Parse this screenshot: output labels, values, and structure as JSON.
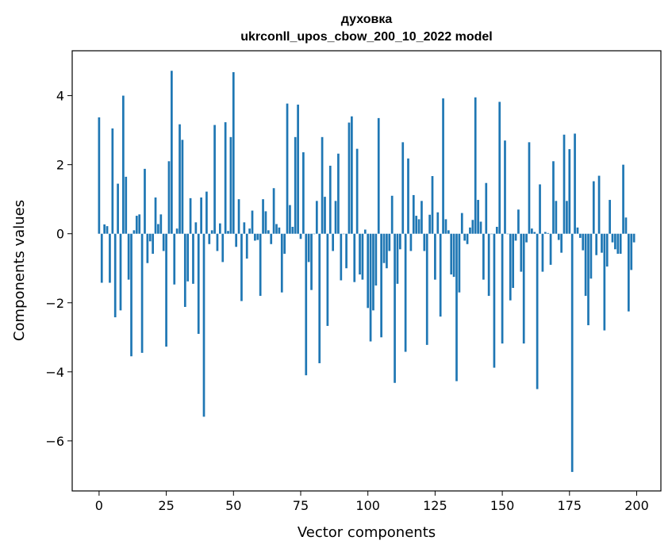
{
  "chart_data": {
    "type": "bar",
    "title": "духовка",
    "subtitle": "ukrconll_upos_cbow_200_10_2022 model",
    "xlabel": "Vector components",
    "ylabel": "Components values",
    "xlim": [
      -10,
      209
    ],
    "ylim": [
      -7.45,
      5.3
    ],
    "xticks": [
      0,
      25,
      50,
      75,
      100,
      125,
      150,
      175,
      200
    ],
    "yticks": [
      -6,
      -4,
      -2,
      0,
      2,
      4
    ],
    "x": [
      0,
      1,
      2,
      3,
      4,
      5,
      6,
      7,
      8,
      9,
      10,
      11,
      12,
      13,
      14,
      15,
      16,
      17,
      18,
      19,
      20,
      21,
      22,
      23,
      24,
      25,
      26,
      27,
      28,
      29,
      30,
      31,
      32,
      33,
      34,
      35,
      36,
      37,
      38,
      39,
      40,
      41,
      42,
      43,
      44,
      45,
      46,
      47,
      48,
      49,
      50,
      51,
      52,
      53,
      54,
      55,
      56,
      57,
      58,
      59,
      60,
      61,
      62,
      63,
      64,
      65,
      66,
      67,
      68,
      69,
      70,
      71,
      72,
      73,
      74,
      75,
      76,
      77,
      78,
      79,
      80,
      81,
      82,
      83,
      84,
      85,
      86,
      87,
      88,
      89,
      90,
      91,
      92,
      93,
      94,
      95,
      96,
      97,
      98,
      99,
      100,
      101,
      102,
      103,
      104,
      105,
      106,
      107,
      108,
      109,
      110,
      111,
      112,
      113,
      114,
      115,
      116,
      117,
      118,
      119,
      120,
      121,
      122,
      123,
      124,
      125,
      126,
      127,
      128,
      129,
      130,
      131,
      132,
      133,
      134,
      135,
      136,
      137,
      138,
      139,
      140,
      141,
      142,
      143,
      144,
      145,
      146,
      147,
      148,
      149,
      150,
      151,
      152,
      153,
      154,
      155,
      156,
      157,
      158,
      159,
      160,
      161,
      162,
      163,
      164,
      165,
      166,
      167,
      168,
      169,
      170,
      171,
      172,
      173,
      174,
      175,
      176,
      177,
      178,
      179,
      180,
      181,
      182,
      183,
      184,
      185,
      186,
      187,
      188,
      189,
      190,
      191,
      192,
      193,
      194,
      195,
      196,
      197,
      198,
      199
    ],
    "values": [
      3.37,
      -1.42,
      0.27,
      0.22,
      -1.42,
      3.05,
      -2.42,
      1.45,
      -2.22,
      4.0,
      1.65,
      -1.33,
      -3.55,
      0.1,
      0.52,
      0.56,
      -3.45,
      1.88,
      -0.85,
      -0.22,
      -0.58,
      1.05,
      0.28,
      0.56,
      -0.5,
      -3.27,
      2.1,
      4.72,
      -1.47,
      0.15,
      3.17,
      2.72,
      -2.12,
      -1.38,
      1.03,
      -1.45,
      0.33,
      -2.9,
      1.05,
      -5.3,
      1.22,
      -0.3,
      0.1,
      3.15,
      -0.5,
      0.3,
      -0.82,
      3.23,
      0.08,
      2.8,
      4.68,
      -0.38,
      1.0,
      -1.95,
      0.33,
      -0.72,
      0.15,
      0.67,
      -0.2,
      -0.18,
      -1.8,
      1.0,
      0.65,
      0.1,
      -0.3,
      1.32,
      0.28,
      0.18,
      -1.7,
      -0.58,
      3.77,
      0.83,
      0.2,
      2.8,
      3.74,
      -0.15,
      2.36,
      -4.1,
      -0.82,
      -1.63,
      0.0,
      0.95,
      -3.75,
      2.8,
      1.07,
      -2.67,
      1.97,
      -0.5,
      0.95,
      2.32,
      -1.35,
      0.0,
      -1.0,
      3.22,
      3.4,
      -1.4,
      2.46,
      -1.18,
      -1.33,
      0.12,
      -2.15,
      -3.12,
      -2.22,
      -1.5,
      3.35,
      -3.0,
      -0.85,
      -1.0,
      -0.5,
      1.1,
      -4.32,
      -1.45,
      -0.45,
      2.65,
      -3.42,
      2.18,
      -0.5,
      1.12,
      0.52,
      0.42,
      0.95,
      -0.5,
      -3.22,
      0.55,
      1.67,
      -1.33,
      0.62,
      -2.4,
      3.92,
      0.42,
      0.1,
      -1.18,
      -1.25,
      -4.27,
      -1.7,
      0.6,
      -0.2,
      -0.3,
      0.18,
      0.4,
      3.95,
      0.98,
      0.35,
      -1.33,
      1.47,
      -1.8,
      0.0,
      -3.88,
      0.2,
      3.82,
      -3.18,
      2.7,
      0.0,
      -1.93,
      -1.57,
      -0.2,
      0.7,
      -1.1,
      -3.18,
      -0.25,
      2.65,
      0.15,
      0.05,
      -4.5,
      1.43,
      -1.1,
      0.05,
      0.02,
      -0.9,
      2.1,
      0.95,
      -0.18,
      -0.55,
      2.87,
      0.95,
      2.45,
      -6.9,
      2.9,
      0.18,
      -0.12,
      -0.48,
      -1.8,
      -2.65,
      -1.3,
      1.52,
      -0.62,
      1.68,
      -0.55,
      -2.8,
      -0.95,
      0.98,
      -0.25,
      -0.45,
      -0.58,
      -0.58,
      2.0,
      0.47,
      -2.25,
      -1.05,
      -0.25
    ],
    "color": "#1f77b4",
    "grid": false,
    "legend": "none"
  }
}
